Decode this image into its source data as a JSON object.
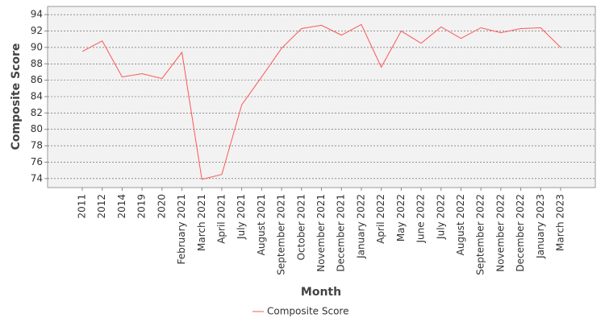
{
  "chart_data": {
    "type": "line",
    "x_label": "Month",
    "y_label": "Composite Score",
    "categories": [
      "2011",
      "2012",
      "2014",
      "2019",
      "2020",
      "February 2021",
      "March 2021",
      "April 2021",
      "July 2021",
      "August 2021",
      "September 2021",
      "October 2021",
      "November 2021",
      "December 2021",
      "January 2022",
      "April 2022",
      "May 2022",
      "June 2022",
      "July 2022",
      "August 2022",
      "September 2022",
      "November 2022",
      "December 2022",
      "January 2023",
      "March 2023"
    ],
    "series": [
      {
        "name": "Composite Score",
        "color": "#ff5555",
        "values": [
          89.5,
          90.8,
          86.4,
          86.8,
          86.2,
          89.4,
          73.9,
          74.5,
          83.0,
          86.4,
          89.9,
          92.3,
          92.7,
          91.5,
          92.8,
          87.6,
          92.0,
          90.5,
          92.5,
          91.1,
          92.4,
          91.8,
          92.3,
          92.4,
          90.0
        ]
      }
    ],
    "ylim": [
      72.9,
      95
    ],
    "yticks": [
      74,
      76,
      78,
      80,
      82,
      84,
      86,
      88,
      90,
      92,
      94
    ],
    "grid": true,
    "legend": "bottom"
  }
}
